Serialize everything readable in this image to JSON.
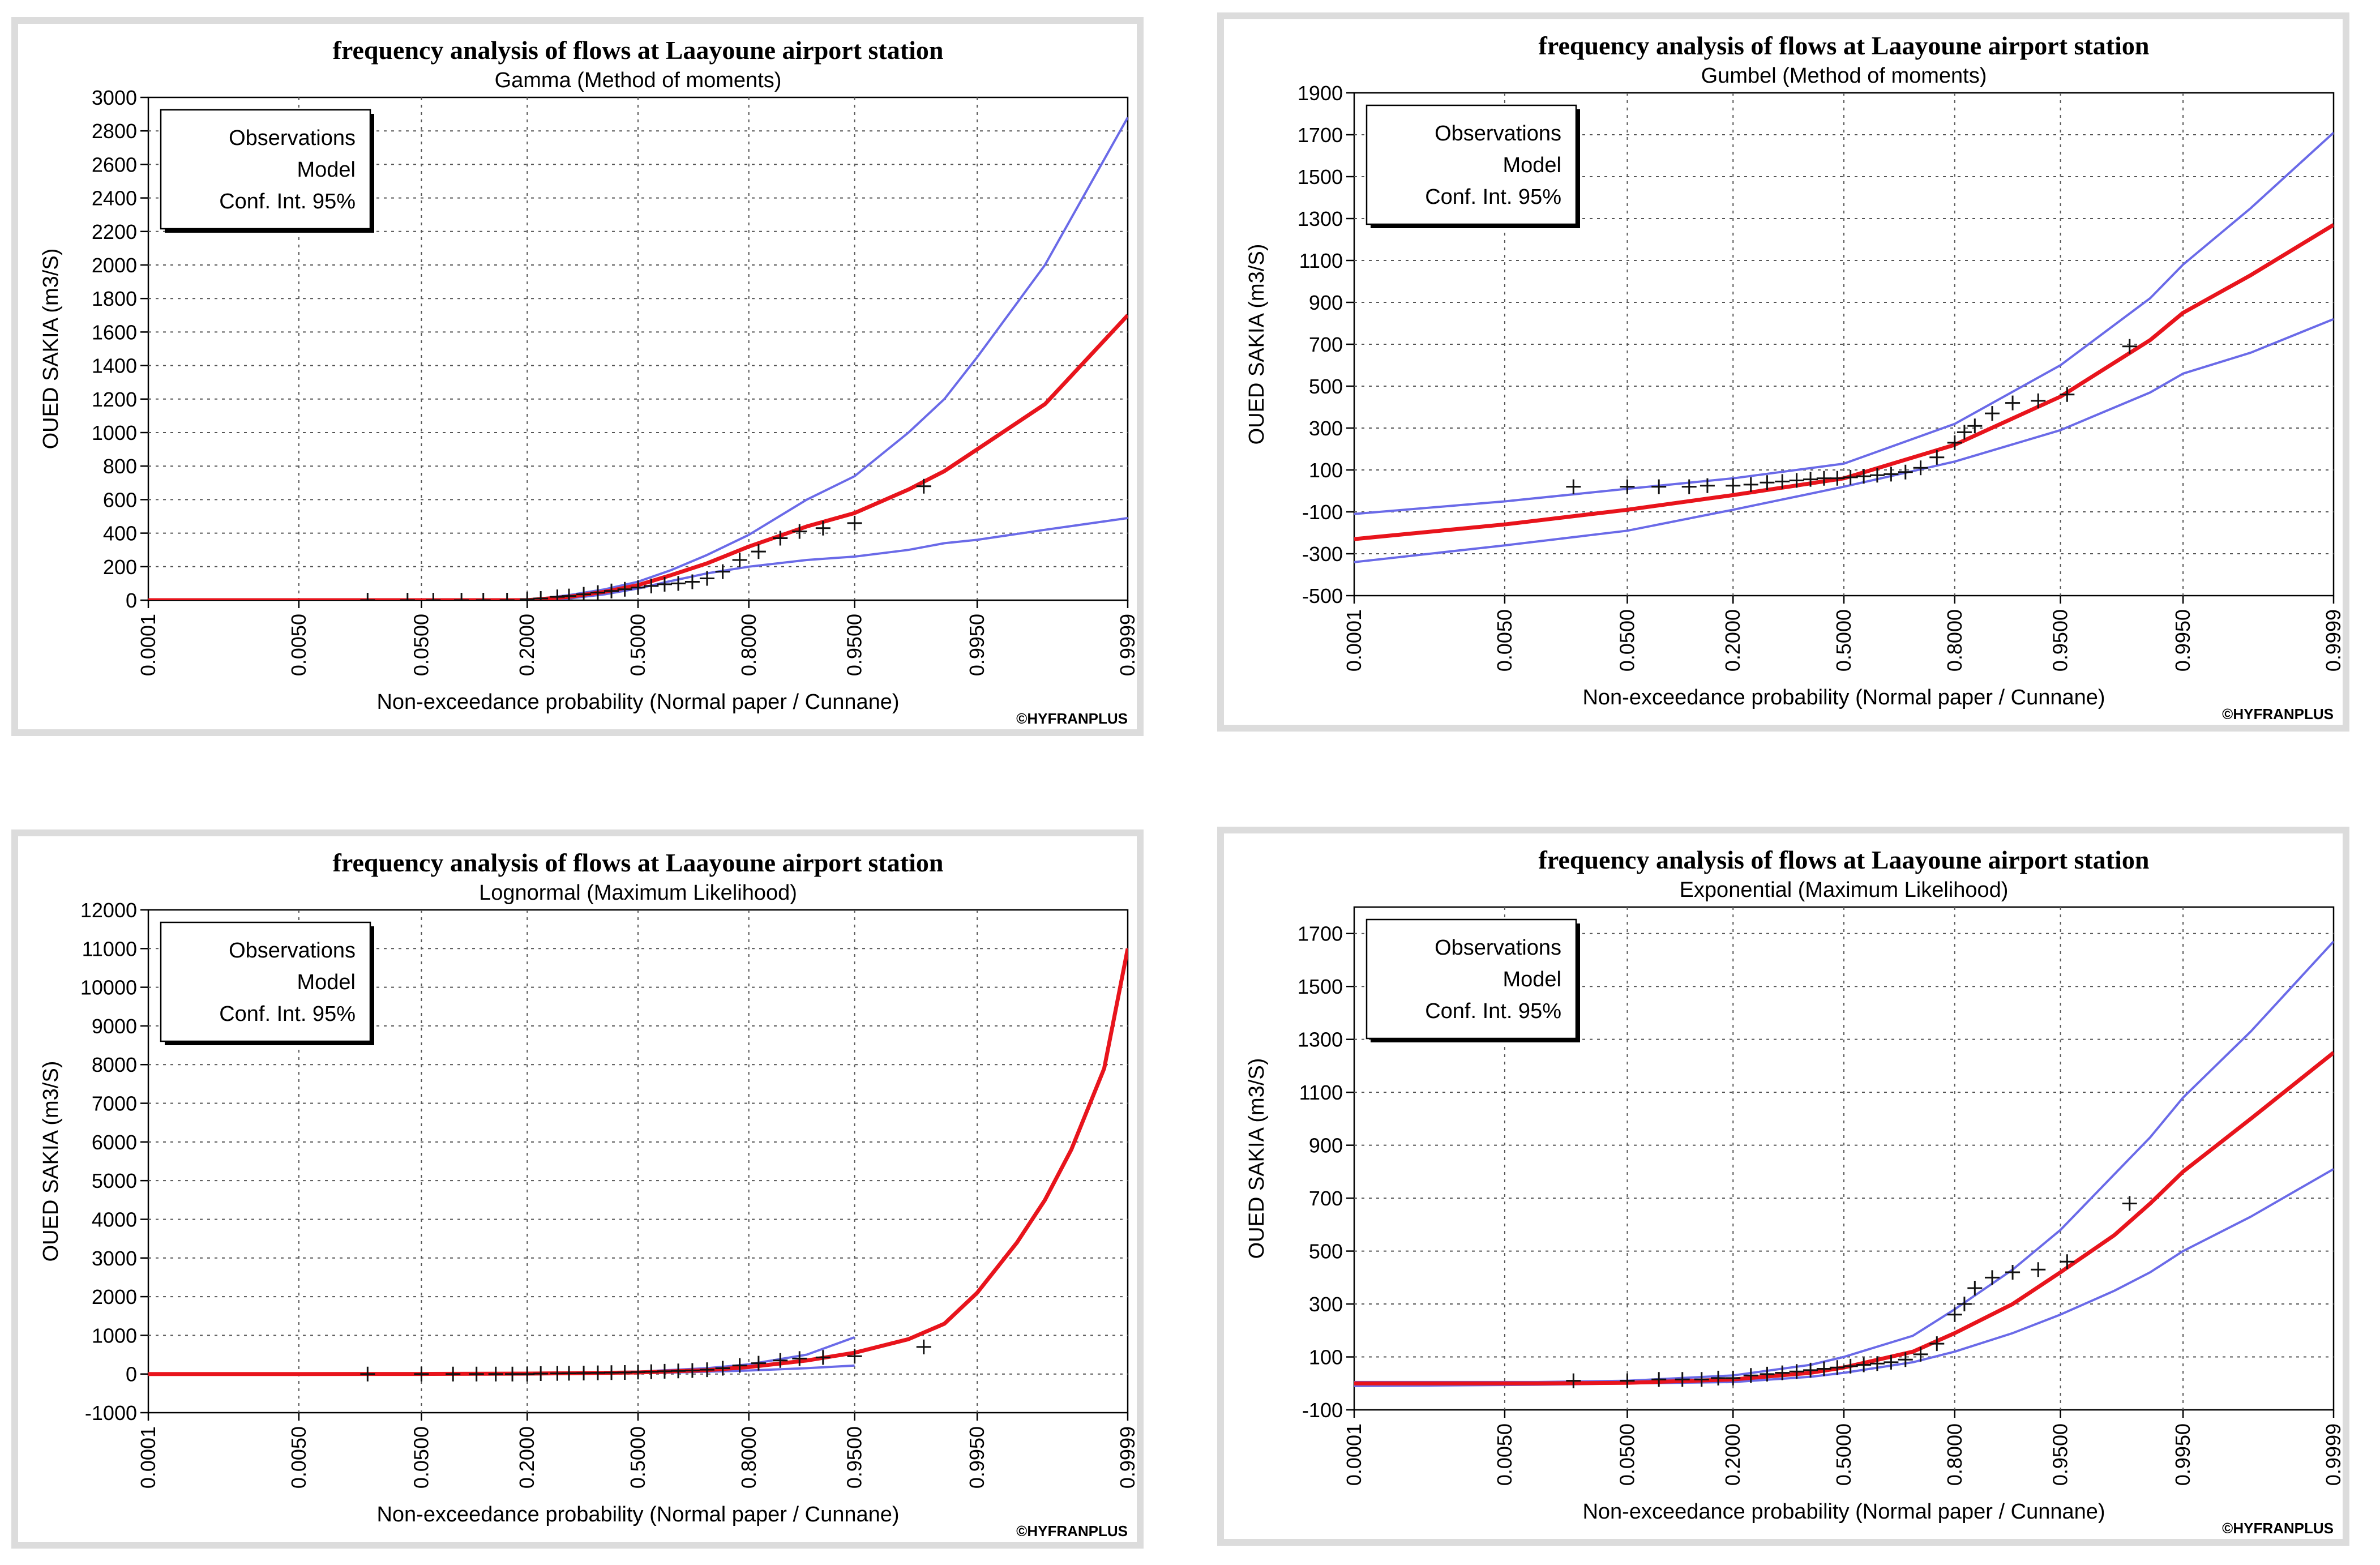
{
  "chart_data": [
    {
      "type": "line",
      "title": "frequency analysis of flows at Laayoune airport station",
      "subtitle": "Gamma (Method of moments)",
      "xlabel": "Non-exceedance probability (Normal paper / Cunnane)",
      "ylabel": "OUED SAKIA (m3/S)",
      "credit": "©HYFRANPLUS",
      "legend": [
        "Observations",
        "Model",
        "Conf. Int. 95%"
      ],
      "legend_position": "top-left",
      "grid": true,
      "x_ticks": [
        "0.0001",
        "0.0050",
        "0.0500",
        "0.2000",
        "0.5000",
        "0.8000",
        "0.9500",
        "0.9950",
        "0.9999"
      ],
      "y_ticks": [
        "0",
        "200",
        "400",
        "600",
        "800",
        "1000",
        "1200",
        "1400",
        "1600",
        "1800",
        "2000",
        "2200",
        "2400",
        "2600",
        "2800",
        "3000"
      ],
      "ylim": [
        0,
        3000
      ],
      "colors": {
        "model": "#e8141c",
        "ci": "#6a6ae8",
        "obs": "#111111"
      },
      "model": [
        [
          0.0001,
          0
        ],
        [
          0.05,
          0
        ],
        [
          0.2,
          0
        ],
        [
          0.3,
          20
        ],
        [
          0.4,
          50
        ],
        [
          0.5,
          90
        ],
        [
          0.6,
          150
        ],
        [
          0.7,
          220
        ],
        [
          0.8,
          320
        ],
        [
          0.9,
          440
        ],
        [
          0.95,
          520
        ],
        [
          0.98,
          660
        ],
        [
          0.99,
          770
        ],
        [
          0.995,
          900
        ],
        [
          0.999,
          1170
        ],
        [
          0.9999,
          1700
        ]
      ],
      "ci_upper": [
        [
          0.0001,
          0
        ],
        [
          0.05,
          0
        ],
        [
          0.2,
          0
        ],
        [
          0.3,
          30
        ],
        [
          0.4,
          65
        ],
        [
          0.5,
          110
        ],
        [
          0.6,
          180
        ],
        [
          0.7,
          270
        ],
        [
          0.8,
          390
        ],
        [
          0.9,
          600
        ],
        [
          0.95,
          740
        ],
        [
          0.98,
          1000
        ],
        [
          0.99,
          1200
        ],
        [
          0.995,
          1450
        ],
        [
          0.999,
          2000
        ],
        [
          0.9999,
          2880
        ]
      ],
      "ci_lower": [
        [
          0.0001,
          0
        ],
        [
          0.05,
          0
        ],
        [
          0.2,
          0
        ],
        [
          0.3,
          10
        ],
        [
          0.4,
          35
        ],
        [
          0.5,
          70
        ],
        [
          0.6,
          115
        ],
        [
          0.7,
          160
        ],
        [
          0.8,
          200
        ],
        [
          0.9,
          240
        ],
        [
          0.95,
          260
        ],
        [
          0.98,
          300
        ],
        [
          0.99,
          340
        ],
        [
          0.995,
          360
        ],
        [
          0.999,
          420
        ],
        [
          0.9999,
          490
        ]
      ],
      "observations": [
        [
          0.02,
          0
        ],
        [
          0.04,
          0
        ],
        [
          0.06,
          0
        ],
        [
          0.09,
          0
        ],
        [
          0.12,
          0
        ],
        [
          0.16,
          0
        ],
        [
          0.2,
          5
        ],
        [
          0.23,
          10
        ],
        [
          0.27,
          20
        ],
        [
          0.3,
          25
        ],
        [
          0.34,
          35
        ],
        [
          0.38,
          45
        ],
        [
          0.42,
          55
        ],
        [
          0.46,
          65
        ],
        [
          0.5,
          75
        ],
        [
          0.54,
          85
        ],
        [
          0.58,
          95
        ],
        [
          0.62,
          100
        ],
        [
          0.66,
          110
        ],
        [
          0.7,
          130
        ],
        [
          0.74,
          170
        ],
        [
          0.78,
          240
        ],
        [
          0.82,
          290
        ],
        [
          0.86,
          370
        ],
        [
          0.89,
          410
        ],
        [
          0.92,
          430
        ],
        [
          0.95,
          460
        ],
        [
          0.985,
          680
        ]
      ]
    },
    {
      "type": "line",
      "title": "frequency analysis of flows at Laayoune airport station",
      "subtitle": "Gumbel (Method of moments)",
      "xlabel": "Non-exceedance probability (Normal paper / Cunnane)",
      "ylabel": "OUED SAKIA (m3/S)",
      "credit": "©HYFRANPLUS",
      "legend": [
        "Observations",
        "Model",
        "Conf. Int. 95%"
      ],
      "legend_position": "top-left",
      "grid": true,
      "x_ticks": [
        "0.0001",
        "0.0050",
        "0.0500",
        "0.2000",
        "0.5000",
        "0.8000",
        "0.9500",
        "0.9950",
        "0.9999"
      ],
      "y_ticks": [
        "-500",
        "-300",
        "-100",
        "100",
        "300",
        "500",
        "700",
        "900",
        "1100",
        "1300",
        "1500",
        "1700",
        "1900"
      ],
      "ylim": [
        -500,
        1900
      ],
      "colors": {
        "model": "#e8141c",
        "ci": "#6a6ae8",
        "obs": "#111111"
      },
      "model": [
        [
          0.0001,
          -230
        ],
        [
          0.005,
          -160
        ],
        [
          0.05,
          -90
        ],
        [
          0.2,
          -20
        ],
        [
          0.5,
          60
        ],
        [
          0.8,
          220
        ],
        [
          0.95,
          450
        ],
        [
          0.99,
          720
        ],
        [
          0.995,
          850
        ],
        [
          0.999,
          1030
        ],
        [
          0.9999,
          1270
        ]
      ],
      "ci_upper": [
        [
          0.0001,
          -110
        ],
        [
          0.005,
          -50
        ],
        [
          0.05,
          10
        ],
        [
          0.2,
          60
        ],
        [
          0.5,
          130
        ],
        [
          0.8,
          320
        ],
        [
          0.95,
          600
        ],
        [
          0.99,
          920
        ],
        [
          0.995,
          1080
        ],
        [
          0.999,
          1350
        ],
        [
          0.9999,
          1710
        ]
      ],
      "ci_lower": [
        [
          0.0001,
          -340
        ],
        [
          0.005,
          -260
        ],
        [
          0.05,
          -190
        ],
        [
          0.2,
          -90
        ],
        [
          0.5,
          20
        ],
        [
          0.8,
          140
        ],
        [
          0.95,
          290
        ],
        [
          0.99,
          470
        ],
        [
          0.995,
          560
        ],
        [
          0.999,
          660
        ],
        [
          0.9999,
          820
        ]
      ],
      "observations": [
        [
          0.02,
          20
        ],
        [
          0.05,
          20
        ],
        [
          0.08,
          20
        ],
        [
          0.12,
          20
        ],
        [
          0.15,
          25
        ],
        [
          0.2,
          25
        ],
        [
          0.24,
          30
        ],
        [
          0.28,
          40
        ],
        [
          0.32,
          45
        ],
        [
          0.36,
          50
        ],
        [
          0.4,
          55
        ],
        [
          0.44,
          60
        ],
        [
          0.48,
          60
        ],
        [
          0.52,
          65
        ],
        [
          0.56,
          70
        ],
        [
          0.6,
          75
        ],
        [
          0.64,
          80
        ],
        [
          0.68,
          90
        ],
        [
          0.72,
          110
        ],
        [
          0.76,
          160
        ],
        [
          0.8,
          230
        ],
        [
          0.82,
          280
        ],
        [
          0.84,
          310
        ],
        [
          0.87,
          370
        ],
        [
          0.9,
          420
        ],
        [
          0.93,
          430
        ],
        [
          0.955,
          460
        ],
        [
          0.985,
          690
        ]
      ]
    },
    {
      "type": "line",
      "title": "frequency analysis of flows at Laayoune airport station",
      "subtitle": "Lognormal (Maximum Likelihood)",
      "xlabel": "Non-exceedance probability (Normal paper / Cunnane)",
      "ylabel": "OUED SAKIA (m3/S)",
      "credit": "©HYFRANPLUS",
      "legend": [
        "Observations",
        "Model",
        "Conf. Int. 95%"
      ],
      "legend_position": "top-left",
      "grid": true,
      "x_ticks": [
        "0.0001",
        "0.0050",
        "0.0500",
        "0.2000",
        "0.5000",
        "0.8000",
        "0.9500",
        "0.9950",
        "0.9999"
      ],
      "y_ticks": [
        "-1000",
        "0",
        "1000",
        "2000",
        "3000",
        "4000",
        "5000",
        "6000",
        "7000",
        "8000",
        "9000",
        "10000",
        "11000",
        "12000"
      ],
      "ylim": [
        -1000,
        12000
      ],
      "colors": {
        "model": "#e8141c",
        "ci": "#6a6ae8",
        "obs": "#111111"
      },
      "model": [
        [
          0.0001,
          0
        ],
        [
          0.005,
          0
        ],
        [
          0.05,
          2
        ],
        [
          0.2,
          10
        ],
        [
          0.5,
          40
        ],
        [
          0.7,
          100
        ],
        [
          0.8,
          180
        ],
        [
          0.9,
          350
        ],
        [
          0.95,
          550
        ],
        [
          0.98,
          900
        ],
        [
          0.99,
          1300
        ],
        [
          0.995,
          2100
        ],
        [
          0.998,
          3400
        ],
        [
          0.999,
          4500
        ],
        [
          0.9995,
          5800
        ],
        [
          0.9998,
          7900
        ],
        [
          0.9999,
          11000
        ]
      ],
      "ci_upper": [
        [
          0.0001,
          0
        ],
        [
          0.005,
          0
        ],
        [
          0.05,
          5
        ],
        [
          0.2,
          20
        ],
        [
          0.5,
          60
        ],
        [
          0.7,
          150
        ],
        [
          0.8,
          250
        ],
        [
          0.9,
          500
        ],
        [
          0.95,
          950
        ]
      ],
      "ci_lower": [
        [
          0.0001,
          0
        ],
        [
          0.005,
          0
        ],
        [
          0.05,
          0
        ],
        [
          0.2,
          5
        ],
        [
          0.5,
          20
        ],
        [
          0.7,
          60
        ],
        [
          0.8,
          90
        ],
        [
          0.9,
          150
        ],
        [
          0.95,
          220
        ]
      ],
      "observations": [
        [
          0.02,
          0
        ],
        [
          0.05,
          0
        ],
        [
          0.08,
          0
        ],
        [
          0.11,
          0
        ],
        [
          0.14,
          0
        ],
        [
          0.17,
          0
        ],
        [
          0.2,
          0
        ],
        [
          0.23,
          10
        ],
        [
          0.27,
          15
        ],
        [
          0.3,
          20
        ],
        [
          0.34,
          25
        ],
        [
          0.38,
          30
        ],
        [
          0.42,
          35
        ],
        [
          0.46,
          40
        ],
        [
          0.5,
          50
        ],
        [
          0.54,
          60
        ],
        [
          0.58,
          70
        ],
        [
          0.62,
          80
        ],
        [
          0.66,
          90
        ],
        [
          0.7,
          110
        ],
        [
          0.74,
          150
        ],
        [
          0.78,
          220
        ],
        [
          0.82,
          280
        ],
        [
          0.86,
          350
        ],
        [
          0.89,
          400
        ],
        [
          0.92,
          430
        ],
        [
          0.95,
          460
        ],
        [
          0.985,
          700
        ]
      ]
    },
    {
      "type": "line",
      "title": "frequency analysis of flows at Laayoune airport station",
      "subtitle": "Exponential (Maximum Likelihood)",
      "xlabel": "Non-exceedance probability (Normal paper / Cunnane)",
      "ylabel": "OUED SAKIA (m3/S)",
      "credit": "©HYFRANPLUS",
      "legend": [
        "Observations",
        "Model",
        "Conf. Int. 95%"
      ],
      "legend_position": "top-left",
      "grid": true,
      "x_ticks": [
        "0.0001",
        "0.0050",
        "0.0500",
        "0.2000",
        "0.5000",
        "0.8000",
        "0.9500",
        "0.9950",
        "0.9999"
      ],
      "y_ticks": [
        "-100",
        "100",
        "300",
        "500",
        "700",
        "900",
        "1100",
        "1300",
        "1500",
        "1700"
      ],
      "ylim": [
        -100,
        1800
      ],
      "colors": {
        "model": "#e8141c",
        "ci": "#6a6ae8",
        "obs": "#111111"
      },
      "model": [
        [
          0.0001,
          0
        ],
        [
          0.01,
          0
        ],
        [
          0.05,
          2
        ],
        [
          0.2,
          15
        ],
        [
          0.4,
          40
        ],
        [
          0.5,
          60
        ],
        [
          0.7,
          120
        ],
        [
          0.8,
          190
        ],
        [
          0.9,
          300
        ],
        [
          0.95,
          420
        ],
        [
          0.98,
          560
        ],
        [
          0.99,
          680
        ],
        [
          0.995,
          800
        ],
        [
          0.999,
          1000
        ],
        [
          0.9999,
          1250
        ]
      ],
      "ci_upper": [
        [
          0.0001,
          5
        ],
        [
          0.01,
          5
        ],
        [
          0.05,
          10
        ],
        [
          0.2,
          30
        ],
        [
          0.4,
          70
        ],
        [
          0.5,
          100
        ],
        [
          0.7,
          180
        ],
        [
          0.8,
          280
        ],
        [
          0.9,
          430
        ],
        [
          0.95,
          580
        ],
        [
          0.98,
          790
        ],
        [
          0.99,
          930
        ],
        [
          0.995,
          1080
        ],
        [
          0.999,
          1330
        ],
        [
          0.9999,
          1670
        ]
      ],
      "ci_lower": [
        [
          0.0001,
          -10
        ],
        [
          0.01,
          -5
        ],
        [
          0.05,
          0
        ],
        [
          0.2,
          5
        ],
        [
          0.4,
          25
        ],
        [
          0.5,
          40
        ],
        [
          0.7,
          80
        ],
        [
          0.8,
          120
        ],
        [
          0.9,
          190
        ],
        [
          0.95,
          260
        ],
        [
          0.98,
          350
        ],
        [
          0.99,
          420
        ],
        [
          0.995,
          500
        ],
        [
          0.999,
          630
        ],
        [
          0.9999,
          810
        ]
      ],
      "observations": [
        [
          0.02,
          10
        ],
        [
          0.05,
          10
        ],
        [
          0.08,
          15
        ],
        [
          0.11,
          15
        ],
        [
          0.14,
          15
        ],
        [
          0.17,
          20
        ],
        [
          0.2,
          20
        ],
        [
          0.24,
          30
        ],
        [
          0.28,
          35
        ],
        [
          0.32,
          40
        ],
        [
          0.36,
          45
        ],
        [
          0.4,
          50
        ],
        [
          0.44,
          55
        ],
        [
          0.48,
          60
        ],
        [
          0.52,
          65
        ],
        [
          0.56,
          70
        ],
        [
          0.6,
          75
        ],
        [
          0.64,
          80
        ],
        [
          0.68,
          90
        ],
        [
          0.72,
          110
        ],
        [
          0.76,
          150
        ],
        [
          0.8,
          260
        ],
        [
          0.82,
          300
        ],
        [
          0.84,
          360
        ],
        [
          0.87,
          400
        ],
        [
          0.9,
          420
        ],
        [
          0.93,
          430
        ],
        [
          0.955,
          460
        ],
        [
          0.985,
          680
        ]
      ]
    }
  ]
}
